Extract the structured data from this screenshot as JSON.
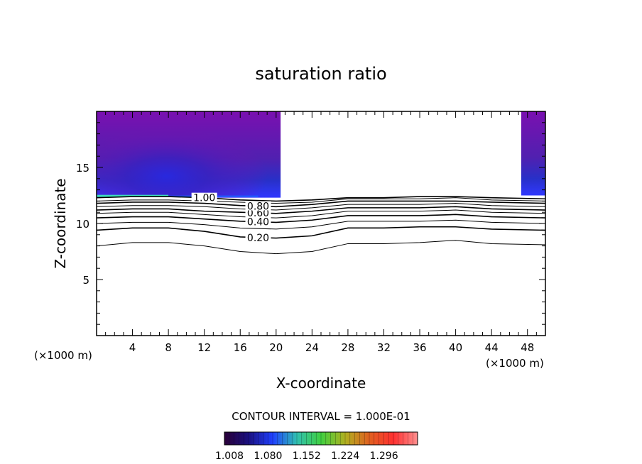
{
  "chart_data": {
    "type": "contour",
    "title": "saturation ratio",
    "xlabel": "X-coordinate",
    "ylabel": "Z-coordinate",
    "x_unit": "(×1000 m)",
    "z_unit": "(×1000 m)",
    "xlim": [
      0,
      50
    ],
    "ylim": [
      0,
      20
    ],
    "x_ticks": [
      4,
      8,
      12,
      16,
      20,
      24,
      28,
      32,
      36,
      40,
      44,
      48
    ],
    "y_ticks": [
      5,
      10,
      15
    ],
    "contour_interval_text": "CONTOUR INTERVAL = 1.000E-01",
    "contour_levels": [
      {
        "level": 0.1,
        "label": "",
        "z": [
          8.0,
          8.3,
          8.3,
          8.0,
          7.5,
          7.3,
          7.5,
          8.2,
          8.2,
          8.3,
          8.5,
          8.2,
          8.1
        ]
      },
      {
        "level": 0.2,
        "label": "0.20",
        "z": [
          9.4,
          9.6,
          9.6,
          9.3,
          8.8,
          8.7,
          8.9,
          9.6,
          9.6,
          9.7,
          9.7,
          9.5,
          9.4
        ]
      },
      {
        "level": 0.3,
        "label": "",
        "z": [
          10.0,
          10.1,
          10.1,
          9.9,
          9.6,
          9.5,
          9.7,
          10.2,
          10.2,
          10.2,
          10.3,
          10.1,
          10.0
        ]
      },
      {
        "level": 0.4,
        "label": "0.40",
        "z": [
          10.5,
          10.6,
          10.6,
          10.4,
          10.2,
          10.1,
          10.3,
          10.7,
          10.7,
          10.7,
          10.8,
          10.6,
          10.5
        ]
      },
      {
        "level": 0.5,
        "label": "",
        "z": [
          10.9,
          11.0,
          11.0,
          10.8,
          10.6,
          10.5,
          10.7,
          11.1,
          11.1,
          11.1,
          11.2,
          11.0,
          10.9
        ]
      },
      {
        "level": 0.6,
        "label": "0.60",
        "z": [
          11.2,
          11.3,
          11.3,
          11.1,
          11.0,
          10.9,
          11.1,
          11.4,
          11.4,
          11.4,
          11.5,
          11.3,
          11.2
        ]
      },
      {
        "level": 0.7,
        "label": "",
        "z": [
          11.5,
          11.6,
          11.6,
          11.5,
          11.3,
          11.2,
          11.4,
          11.7,
          11.7,
          11.7,
          11.8,
          11.6,
          11.5
        ]
      },
      {
        "level": 0.8,
        "label": "0.80",
        "z": [
          11.8,
          11.9,
          11.9,
          11.8,
          11.6,
          11.5,
          11.7,
          12.0,
          12.0,
          12.0,
          12.0,
          11.9,
          11.8
        ]
      },
      {
        "level": 0.9,
        "label": "",
        "z": [
          12.0,
          12.1,
          12.1,
          12.0,
          11.9,
          11.8,
          11.9,
          12.2,
          12.2,
          12.2,
          12.3,
          12.1,
          12.0
        ]
      },
      {
        "level": 1.0,
        "label": "1.00",
        "z": [
          12.3,
          12.4,
          12.4,
          12.3,
          12.1,
          12.0,
          12.1,
          12.3,
          12.3,
          12.4,
          12.4,
          12.3,
          12.2
        ]
      }
    ],
    "contour_x": [
      0,
      4,
      8,
      12,
      16,
      20,
      24,
      28,
      32,
      36,
      40,
      44,
      50
    ],
    "supersaturated_regions": [
      {
        "x_range": [
          0,
          20.5
        ],
        "z_range": [
          12.3,
          20
        ],
        "value_range": [
          1.008,
          1.08
        ]
      },
      {
        "x_range": [
          47.3,
          50
        ],
        "z_range": [
          12.5,
          20
        ],
        "value_range": [
          1.008,
          1.05
        ]
      }
    ],
    "colorbar": {
      "tick_labels": [
        "1.008",
        "1.080",
        "1.152",
        "1.224",
        "1.296"
      ],
      "colors": [
        "#2a0038",
        "#1a1080",
        "#2040ff",
        "#30c0b0",
        "#40d040",
        "#b0b020",
        "#e06020",
        "#ff3030",
        "#ff9090"
      ]
    }
  }
}
